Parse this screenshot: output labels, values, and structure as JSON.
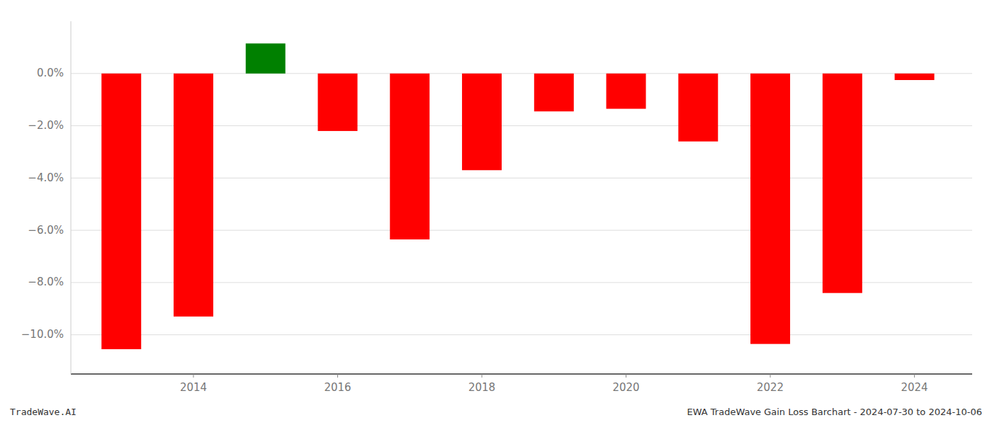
{
  "chart_data": {
    "type": "bar",
    "x": [
      2013,
      2014,
      2015,
      2016,
      2017,
      2018,
      2019,
      2020,
      2021,
      2022,
      2023,
      2024
    ],
    "values": [
      -10.55,
      -9.3,
      1.15,
      -2.2,
      -6.35,
      -3.7,
      -1.45,
      -1.35,
      -2.6,
      -10.35,
      -8.4,
      -0.25
    ],
    "colors": [
      "#ff0000",
      "#ff0000",
      "#008000",
      "#ff0000",
      "#ff0000",
      "#ff0000",
      "#ff0000",
      "#ff0000",
      "#ff0000",
      "#ff0000",
      "#ff0000",
      "#ff0000"
    ],
    "xlim": [
      2012.3,
      2024.8
    ],
    "xticks": [
      2014,
      2016,
      2018,
      2020,
      2022,
      2024
    ],
    "ylim": [
      -11.5,
      2.0
    ],
    "yticks": [
      {
        "value": 0.0,
        "label": "0.0%"
      },
      {
        "value": -2.0,
        "label": "−2.0%"
      },
      {
        "value": -4.0,
        "label": "−4.0%"
      },
      {
        "value": -6.0,
        "label": "−6.0%"
      },
      {
        "value": -8.0,
        "label": "−8.0%"
      },
      {
        "value": -10.0,
        "label": "−10.0%"
      }
    ],
    "grid": true,
    "annotations": [
      "TradeWave.AI",
      "EWA TradeWave Gain Loss Barchart - 2024-07-30 to 2024-10-06"
    ]
  }
}
